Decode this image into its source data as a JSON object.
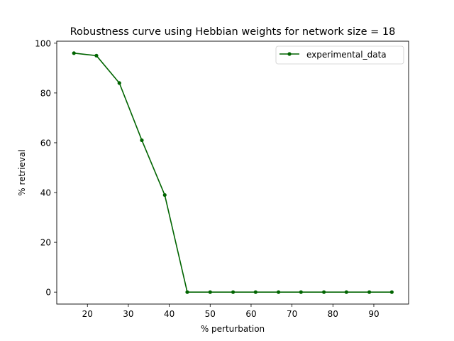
{
  "chart_data": {
    "type": "line",
    "title": "Robustness curve using Hebbian weights for network size = 18",
    "xlabel": "% perturbation",
    "ylabel": "% retrieval",
    "xlim": [
      12.5,
      98.5
    ],
    "ylim": [
      -4.8,
      100.8
    ],
    "xticks": [
      20,
      30,
      40,
      50,
      60,
      70,
      80,
      90
    ],
    "yticks": [
      0,
      20,
      40,
      60,
      80,
      100
    ],
    "grid": false,
    "legend_position": "top-right",
    "series": [
      {
        "name": "experimental_data",
        "color": "#006400",
        "marker": "circle",
        "x": [
          16.7,
          22.2,
          27.8,
          33.3,
          38.9,
          44.4,
          50.0,
          55.6,
          61.1,
          66.7,
          72.2,
          77.8,
          83.3,
          88.9,
          94.4
        ],
        "y": [
          96,
          95,
          84,
          61,
          39,
          0,
          0,
          0,
          0,
          0,
          0,
          0,
          0,
          0,
          0
        ]
      }
    ]
  }
}
